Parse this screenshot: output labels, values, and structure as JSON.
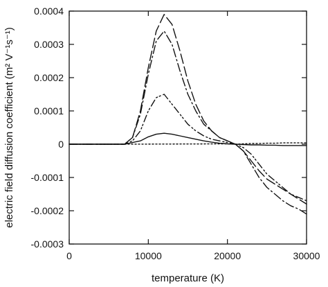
{
  "chart_data": {
    "type": "line",
    "title": "",
    "xlabel": "temperature (K)",
    "ylabel": "electric field diffusion coefficient (m² V⁻¹s⁻¹)",
    "xlim": [
      0,
      30000
    ],
    "ylim": [
      -0.0003,
      0.0004
    ],
    "x_ticks": [
      "0",
      "10000",
      "20000",
      "30000"
    ],
    "y_ticks": [
      "-0.0003",
      "-0.0002",
      "-0.0001",
      "0",
      "0.0001",
      "0.0002",
      "0.0003",
      "0.0004"
    ],
    "grid": false,
    "legend": "none",
    "series": [
      {
        "style": "long-dash",
        "x": [
          0,
          7000,
          8000,
          9000,
          10000,
          11000,
          12000,
          13000,
          14000,
          15000,
          16000,
          17000,
          18000,
          19000,
          20000,
          21000,
          22000,
          23000,
          24000,
          25000,
          26000,
          27000,
          28000,
          29000,
          30000
        ],
        "y": [
          0,
          0,
          2e-05,
          0.0001,
          0.00023,
          0.00034,
          0.00039,
          0.00036,
          0.00028,
          0.00019,
          0.00012,
          7e-05,
          4e-05,
          2e-05,
          1e-05,
          0,
          -2e-05,
          -5e-05,
          -8e-05,
          -0.000105,
          -0.00012,
          -0.000135,
          -0.00015,
          -0.000165,
          -0.00018
        ]
      },
      {
        "style": "dash-dot",
        "x": [
          0,
          7000,
          8000,
          9000,
          10000,
          11000,
          12000,
          13000,
          14000,
          15000,
          16000,
          17000,
          18000,
          19000,
          20000,
          21000,
          22000,
          23000,
          24000,
          25000,
          26000,
          27000,
          28000,
          29000,
          30000
        ],
        "y": [
          0,
          0,
          2e-05,
          9e-05,
          0.00021,
          0.00031,
          0.00034,
          0.0003,
          0.00022,
          0.00015,
          0.0001,
          6e-05,
          4e-05,
          2e-05,
          1e-05,
          0,
          -2e-05,
          -6e-05,
          -0.0001,
          -0.00013,
          -0.00015,
          -0.00017,
          -0.000185,
          -0.000195,
          -0.00021
        ]
      },
      {
        "style": "dash-dot-dot",
        "x": [
          0,
          7000,
          8000,
          9000,
          10000,
          11000,
          12000,
          13000,
          14000,
          15000,
          16000,
          17000,
          18000,
          19000,
          20000,
          21000,
          22000,
          23000,
          24000,
          25000,
          26000,
          27000,
          28000,
          29000,
          30000
        ],
        "y": [
          0,
          0,
          1e-05,
          4e-05,
          0.0001,
          0.00014,
          0.00015,
          0.00012,
          9e-05,
          6e-05,
          4e-05,
          2.5e-05,
          1.5e-05,
          1e-05,
          5e-06,
          0,
          -1e-05,
          -3e-05,
          -6e-05,
          -9e-05,
          -0.00011,
          -0.00013,
          -0.00015,
          -0.00016,
          -0.00017
        ]
      },
      {
        "style": "solid",
        "x": [
          0,
          7000,
          8000,
          9000,
          10000,
          11000,
          12000,
          13000,
          14000,
          15000,
          16000,
          17000,
          18000,
          19000,
          20000,
          21000,
          22000,
          23000,
          24000,
          25000,
          26000,
          27000,
          28000,
          29000,
          30000
        ],
        "y": [
          0,
          0,
          5e-06,
          1e-05,
          2.2e-05,
          3e-05,
          3.3e-05,
          3e-05,
          2.5e-05,
          2e-05,
          1.5e-05,
          1e-05,
          6e-06,
          3e-06,
          1e-06,
          0,
          -1e-06,
          -2e-06,
          -2e-06,
          -3e-06,
          -3e-06,
          -4e-06,
          -4e-06,
          -4e-06,
          -4e-06
        ]
      },
      {
        "style": "dotted",
        "x": [
          0,
          7000,
          20000,
          21000,
          22000,
          23000,
          24000,
          25000,
          26000,
          27000,
          28000,
          29000,
          30000
        ],
        "y": [
          0,
          0,
          1e-06,
          0,
          1e-06,
          2e-06,
          2e-06,
          3e-06,
          3e-06,
          4e-06,
          4e-06,
          4e-06,
          4e-06
        ]
      }
    ]
  }
}
